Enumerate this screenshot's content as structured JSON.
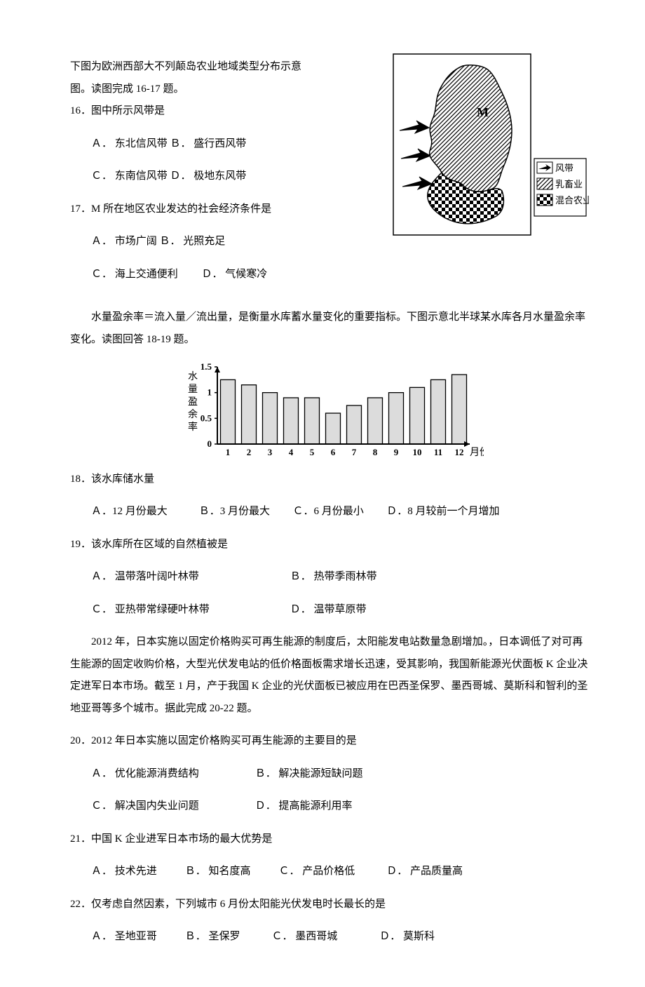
{
  "map_intro_line1": "下图为欧洲西部大不列颠岛农业地域类型分布示意",
  "map_intro_line2": "图。读图完成 16-17 题。",
  "q16": {
    "stem": "16．图中所示风带是",
    "a": "Ａ． 东北信风带",
    "b": "Ｂ． 盛行西风带",
    "c": "Ｃ． 东南信风带",
    "d": "Ｄ． 极地东风带"
  },
  "q17": {
    "stem": "17．M 所在地区农业发达的社会经济条件是",
    "a": "Ａ． 市场广阔",
    "b": "Ｂ． 光照充足",
    "c": "Ｃ． 海上交通便利",
    "d": "Ｄ． 气候寒冷"
  },
  "map": {
    "label_M": "M",
    "legend_wind": "风带",
    "legend_dairy": "乳畜业",
    "legend_mixed": "混合农业",
    "border_color": "#000",
    "hatch_color": "#000"
  },
  "reservoir_intro": "水量盈余率＝流入量／流出量，是衡量水库蓄水量变化的重要指标。下图示意北半球某水库各月水量盈余率变化。读图回答 18-19 题。",
  "chart": {
    "type": "bar",
    "y_label": "水量盈余率",
    "x_label": "月份",
    "categories": [
      "1",
      "2",
      "3",
      "4",
      "5",
      "6",
      "7",
      "8",
      "9",
      "10",
      "11",
      "12"
    ],
    "values": [
      1.25,
      1.15,
      1.0,
      0.9,
      0.9,
      0.6,
      0.75,
      0.9,
      1.0,
      1.1,
      1.25,
      1.35
    ],
    "ylim": [
      0,
      1.5
    ],
    "yticks": [
      0,
      0.5,
      1,
      1.5
    ],
    "bar_fill": "#dcdcdc",
    "bar_stroke": "#000",
    "axis_color": "#000",
    "background": "#ffffff",
    "font_size": 13
  },
  "q18": {
    "stem": "18．该水库储水量",
    "a": "Ａ．12 月份最大",
    "b": "Ｂ．3 月份最大",
    "c": "Ｃ．6 月份最小",
    "d": "Ｄ．8 月较前一个月增加"
  },
  "q19": {
    "stem": "19．该水库所在区域的自然植被是",
    "a": "Ａ． 温带落叶阔叶林带",
    "b": "Ｂ． 热带季雨林带",
    "c": "Ｃ． 亚热带常绿硬叶林带",
    "d": "Ｄ． 温带草原带"
  },
  "japan_intro": "2012 年，日本实施以固定价格购买可再生能源的制度后，太阳能发电站数量急剧增加。，日本调低了对可再生能源的固定收购价格，大型光伏发电站的低价格面板需求增长迅速，受其影响，我国新能源光伏面板 K 企业决定进军日本市场。截至 1 月，产于我国 K 企业的光伏面板已被应用在巴西圣保罗、墨西哥城、莫斯科和智利的圣地亚哥等多个城市。据此完成 20-22 题。",
  "q20": {
    "stem": "20．2012 年日本实施以固定价格购买可再生能源的主要目的是",
    "a": "Ａ． 优化能源消费结构",
    "b": "Ｂ． 解决能源短缺问题",
    "c": "Ｃ． 解决国内失业问题",
    "d": "Ｄ． 提高能源利用率"
  },
  "q21": {
    "stem": "21．中国 K 企业进军日本市场的最大优势是",
    "a": "Ａ． 技术先进",
    "b": "Ｂ． 知名度高",
    "c": "Ｃ． 产品价格低",
    "d": "Ｄ． 产品质量高"
  },
  "q22": {
    "stem": "22．仅考虑自然因素，下列城市 6 月份太阳能光伏发电时长最长的是",
    "a": "Ａ． 圣地亚哥",
    "b": "Ｂ． 圣保罗",
    "c": "Ｃ． 墨西哥城",
    "d": "Ｄ． 莫斯科"
  }
}
